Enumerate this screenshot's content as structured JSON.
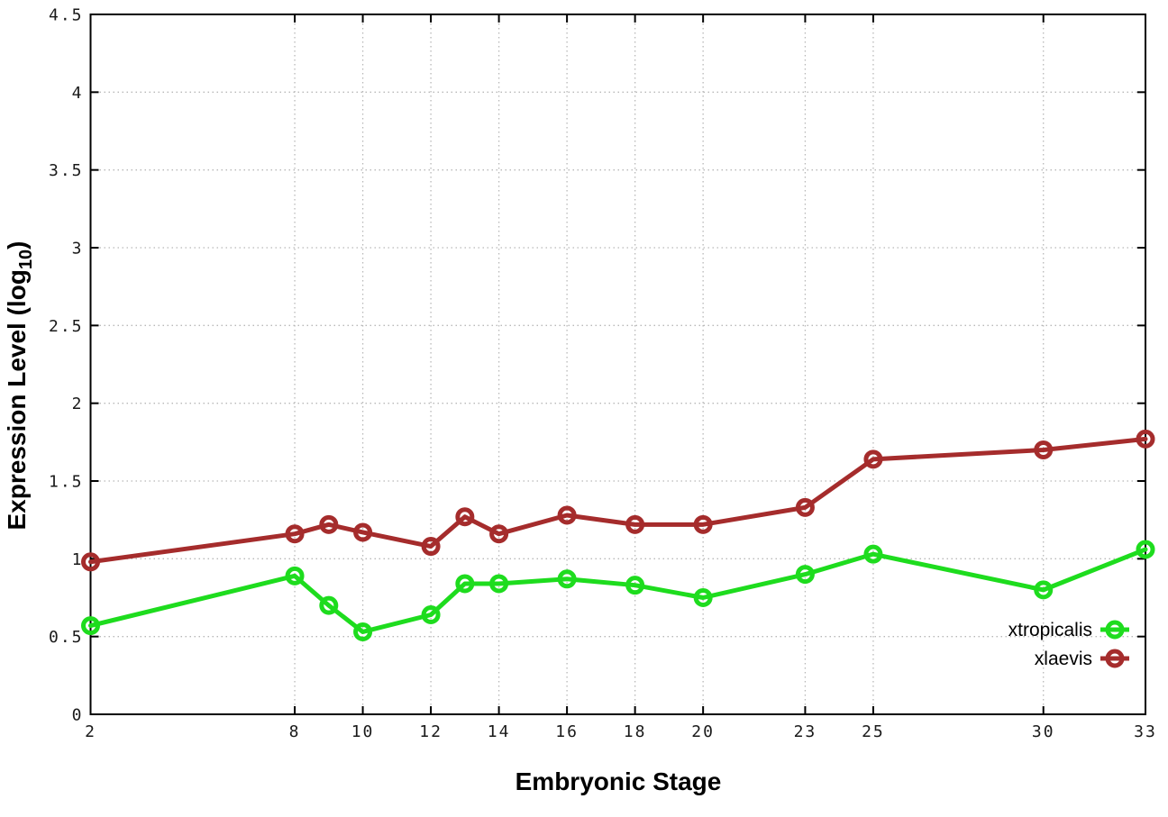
{
  "chart_data": {
    "type": "line",
    "title": "",
    "xlabel": "Embryonic Stage",
    "ylabel": "Expression Level (log10)",
    "ylabel_parts": {
      "main": "Expression Level (log",
      "sub": "10",
      "close": ")"
    },
    "xlim": [
      2,
      33
    ],
    "ylim": [
      0,
      4.5
    ],
    "x_ticks": [
      2,
      8,
      10,
      12,
      14,
      16,
      18,
      20,
      23,
      25,
      30,
      33
    ],
    "y_ticks": [
      0,
      0.5,
      1,
      1.5,
      2,
      2.5,
      3,
      3.5,
      4,
      4.5
    ],
    "grid": true,
    "legend_position": "bottom-right-inside",
    "x": [
      2,
      8,
      9,
      10,
      12,
      13,
      14,
      16,
      18,
      20,
      23,
      25,
      30,
      33
    ],
    "series": [
      {
        "name": "xtropicalis",
        "color": "#1edc1e",
        "values": [
          0.57,
          0.89,
          0.7,
          0.53,
          0.64,
          0.84,
          0.84,
          0.87,
          0.83,
          0.75,
          0.9,
          1.03,
          0.8,
          1.06
        ]
      },
      {
        "name": "xlaevis",
        "color": "#a52c2c",
        "values": [
          0.98,
          1.16,
          1.22,
          1.17,
          1.08,
          1.27,
          1.16,
          1.28,
          1.22,
          1.22,
          1.33,
          1.64,
          1.7,
          1.77
        ]
      }
    ],
    "colors": {
      "grid": "#b8b8b8",
      "axis": "#000000",
      "tick_text": "#1a1a1a",
      "background": "#ffffff"
    }
  }
}
